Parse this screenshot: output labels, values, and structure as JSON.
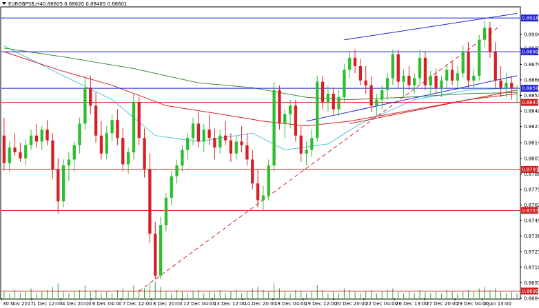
{
  "header": {
    "symbol": "EURGBPSB,H4",
    "ohlc": "0.88605 0.88620 0.88485 0.88601"
  },
  "chart_data": {
    "type": "candlestick",
    "ylim": [
      0.8684,
      0.89275
    ],
    "y_ticks": [
      "0.89045",
      "0.88930",
      "0.88795",
      "0.88665",
      "0.88535",
      "0.88405",
      "0.88275",
      "0.88140",
      "0.88010",
      "0.87880",
      "0.87750",
      "0.87620",
      "0.87490",
      "0.87360",
      "0.87230",
      "0.87100",
      "0.86970",
      "0.86840"
    ],
    "x_labels": [
      "30 Nov 2017",
      "1 Dec 12:00",
      "4 Dec 20:00",
      "6 Dec 04:00",
      "7 Dec 12:00",
      "8 Dec 20:00",
      "12 Dec 04:00",
      "13 Dec 12:00",
      "14 Dec 20:00",
      "18 Dec 04:00",
      "19 Dec 12:00",
      "20 Dec 20:00",
      "22 Dec 04:00",
      "26 Dec 13:00",
      "27 Dec 20:00",
      "29 Dec 04:00",
      "2 Jan 13:00"
    ],
    "horizontal_levels": [
      {
        "value": 0.89182,
        "label": "0.89182",
        "color": "#1e22d6"
      },
      {
        "value": 0.889,
        "label": "0.88900",
        "color": "#1e22d6"
      },
      {
        "value": 0.88595,
        "label": "0.88595",
        "color": "#1e22d6"
      },
      {
        "value": 0.88477,
        "label": "0.88477",
        "color": "#d2201e"
      },
      {
        "value": 0.87917,
        "label": "0.87917",
        "color": "#d2201e"
      },
      {
        "value": 0.87575,
        "label": "0.87575",
        "color": "#d2201e"
      },
      {
        "value": 0.86901,
        "label": "0.86901",
        "color": "#d2201e"
      }
    ],
    "candles": [
      [
        0.882,
        0.8835,
        0.8791,
        0.8797
      ],
      [
        0.8797,
        0.8815,
        0.879,
        0.881
      ],
      [
        0.881,
        0.8822,
        0.8803,
        0.8806
      ],
      [
        0.8806,
        0.8814,
        0.8798,
        0.8801
      ],
      [
        0.8801,
        0.8817,
        0.8795,
        0.8812
      ],
      [
        0.8812,
        0.8825,
        0.8808,
        0.882
      ],
      [
        0.882,
        0.883,
        0.881,
        0.8815
      ],
      [
        0.8815,
        0.8828,
        0.8808,
        0.8825
      ],
      [
        0.8825,
        0.8833,
        0.8812,
        0.8816
      ],
      [
        0.8816,
        0.8822,
        0.8784,
        0.8792
      ],
      [
        0.8792,
        0.8801,
        0.8755,
        0.8765
      ],
      [
        0.8765,
        0.88,
        0.876,
        0.8795
      ],
      [
        0.8795,
        0.8806,
        0.8782,
        0.88
      ],
      [
        0.88,
        0.8815,
        0.879,
        0.8812
      ],
      [
        0.8812,
        0.8835,
        0.8805,
        0.883
      ],
      [
        0.883,
        0.8868,
        0.8825,
        0.886
      ],
      [
        0.886,
        0.887,
        0.8838,
        0.8845
      ],
      [
        0.8845,
        0.8856,
        0.8814,
        0.882
      ],
      [
        0.882,
        0.8832,
        0.88,
        0.8805
      ],
      [
        0.8805,
        0.8828,
        0.88,
        0.8822
      ],
      [
        0.8822,
        0.8838,
        0.8815,
        0.8833
      ],
      [
        0.8833,
        0.8842,
        0.8812,
        0.8818
      ],
      [
        0.8818,
        0.8826,
        0.879,
        0.8796
      ],
      [
        0.8796,
        0.881,
        0.8788,
        0.8806
      ],
      [
        0.8806,
        0.8855,
        0.88,
        0.8848
      ],
      [
        0.8848,
        0.8852,
        0.8812,
        0.8818
      ],
      [
        0.8818,
        0.8826,
        0.8785,
        0.8792
      ],
      [
        0.8792,
        0.8805,
        0.873,
        0.8738
      ],
      [
        0.8738,
        0.8748,
        0.87,
        0.8703
      ],
      [
        0.8703,
        0.8752,
        0.87,
        0.8745
      ],
      [
        0.8745,
        0.8772,
        0.874,
        0.8768
      ],
      [
        0.8768,
        0.879,
        0.8762,
        0.8786
      ],
      [
        0.8786,
        0.88,
        0.878,
        0.8795
      ],
      [
        0.8795,
        0.8812,
        0.879,
        0.8808
      ],
      [
        0.8808,
        0.8822,
        0.88,
        0.8818
      ],
      [
        0.8818,
        0.8835,
        0.8812,
        0.883
      ],
      [
        0.883,
        0.884,
        0.881,
        0.8815
      ],
      [
        0.8815,
        0.883,
        0.8806,
        0.8825
      ],
      [
        0.8825,
        0.8838,
        0.8812,
        0.8818
      ],
      [
        0.8818,
        0.8826,
        0.88,
        0.881
      ],
      [
        0.881,
        0.8825,
        0.8805,
        0.882
      ],
      [
        0.882,
        0.8832,
        0.8812,
        0.8816
      ],
      [
        0.8816,
        0.8822,
        0.8798,
        0.8805
      ],
      [
        0.8805,
        0.882,
        0.88,
        0.8815
      ],
      [
        0.8815,
        0.8828,
        0.8806,
        0.8812
      ],
      [
        0.8812,
        0.8822,
        0.8795,
        0.88
      ],
      [
        0.88,
        0.8808,
        0.8775,
        0.878
      ],
      [
        0.878,
        0.8792,
        0.876,
        0.8766
      ],
      [
        0.8766,
        0.8778,
        0.8757,
        0.877
      ],
      [
        0.877,
        0.88,
        0.8766,
        0.8795
      ],
      [
        0.8795,
        0.8865,
        0.879,
        0.8858
      ],
      [
        0.8858,
        0.8862,
        0.8825,
        0.883
      ],
      [
        0.883,
        0.8842,
        0.8818,
        0.8838
      ],
      [
        0.8838,
        0.885,
        0.8826,
        0.8845
      ],
      [
        0.8845,
        0.885,
        0.8815,
        0.882
      ],
      [
        0.882,
        0.8828,
        0.8798,
        0.8805
      ],
      [
        0.8805,
        0.8815,
        0.8795,
        0.8808
      ],
      [
        0.8808,
        0.8825,
        0.8802,
        0.8818
      ],
      [
        0.8818,
        0.887,
        0.8815,
        0.8865
      ],
      [
        0.8865,
        0.887,
        0.8842,
        0.8848
      ],
      [
        0.8848,
        0.8862,
        0.884,
        0.8855
      ],
      [
        0.8855,
        0.886,
        0.8838,
        0.8842
      ],
      [
        0.8842,
        0.8858,
        0.8836,
        0.8852
      ],
      [
        0.8852,
        0.888,
        0.8848,
        0.8875
      ],
      [
        0.8875,
        0.889,
        0.8868,
        0.8885
      ],
      [
        0.8885,
        0.8892,
        0.8872,
        0.8878
      ],
      [
        0.8878,
        0.8884,
        0.8862,
        0.8866
      ],
      [
        0.8866,
        0.8878,
        0.8855,
        0.8862
      ],
      [
        0.8862,
        0.887,
        0.884,
        0.8845
      ],
      [
        0.8845,
        0.8855,
        0.8836,
        0.885
      ],
      [
        0.885,
        0.8862,
        0.8842,
        0.8858
      ],
      [
        0.8858,
        0.8872,
        0.885,
        0.8868
      ],
      [
        0.8868,
        0.8892,
        0.8862,
        0.8888
      ],
      [
        0.8888,
        0.8892,
        0.886,
        0.8865
      ],
      [
        0.8865,
        0.8875,
        0.8852,
        0.887
      ],
      [
        0.887,
        0.8878,
        0.8858,
        0.8862
      ],
      [
        0.8862,
        0.8872,
        0.8855,
        0.8868
      ],
      [
        0.8868,
        0.8892,
        0.8862,
        0.8885
      ],
      [
        0.8885,
        0.889,
        0.8858,
        0.8862
      ],
      [
        0.8862,
        0.8874,
        0.8855,
        0.887
      ],
      [
        0.887,
        0.8876,
        0.8856,
        0.886
      ],
      [
        0.886,
        0.887,
        0.8852,
        0.8866
      ],
      [
        0.8866,
        0.888,
        0.886,
        0.8875
      ],
      [
        0.8875,
        0.8882,
        0.8862,
        0.8866
      ],
      [
        0.8866,
        0.8878,
        0.886,
        0.8872
      ],
      [
        0.8872,
        0.8895,
        0.8868,
        0.889
      ],
      [
        0.889,
        0.8898,
        0.886,
        0.8866
      ],
      [
        0.8866,
        0.8876,
        0.8858,
        0.887
      ],
      [
        0.887,
        0.8904,
        0.8866,
        0.89
      ],
      [
        0.89,
        0.8916,
        0.8894,
        0.891
      ],
      [
        0.891,
        0.8915,
        0.8885,
        0.889
      ],
      [
        0.889,
        0.8898,
        0.886,
        0.8866
      ],
      [
        0.8866,
        0.8878,
        0.8852,
        0.886
      ],
      [
        0.886,
        0.8872,
        0.8852,
        0.8864
      ],
      [
        0.8864,
        0.887,
        0.885,
        0.886
      ],
      [
        0.886,
        0.8862,
        0.8848,
        0.886
      ]
    ],
    "indicators": [
      {
        "color": "#4cc3dc",
        "points": [
          [
            0,
            0.8895
          ],
          [
            10,
            0.8872
          ],
          [
            20,
            0.885
          ],
          [
            28,
            0.882
          ],
          [
            36,
            0.8815
          ],
          [
            46,
            0.8822
          ],
          [
            52,
            0.8808
          ],
          [
            60,
            0.8813
          ],
          [
            66,
            0.883
          ],
          [
            76,
            0.885
          ],
          [
            86,
            0.8858
          ],
          [
            95,
            0.886
          ]
        ]
      },
      {
        "color": "#d2201e",
        "points": [
          [
            0,
            0.889
          ],
          [
            10,
            0.8875
          ],
          [
            20,
            0.8862
          ],
          [
            30,
            0.8845
          ],
          [
            40,
            0.8838
          ],
          [
            48,
            0.8832
          ],
          [
            56,
            0.8828
          ],
          [
            64,
            0.8832
          ],
          [
            74,
            0.884
          ],
          [
            86,
            0.885
          ],
          [
            95,
            0.8855
          ]
        ]
      },
      {
        "color": "#3c8c3c",
        "points": [
          [
            0,
            0.8893
          ],
          [
            12,
            0.8885
          ],
          [
            24,
            0.8876
          ],
          [
            36,
            0.8864
          ],
          [
            46,
            0.886
          ],
          [
            56,
            0.8852
          ],
          [
            64,
            0.885
          ],
          [
            74,
            0.8852
          ],
          [
            86,
            0.8855
          ],
          [
            95,
            0.8856
          ]
        ]
      }
    ],
    "trendlines": [
      {
        "color": "#1e22d6",
        "style": "solid",
        "from": [
          63,
          0.89
        ],
        "to": [
          95,
          0.8922
        ]
      },
      {
        "color": "#1e22d6",
        "style": "solid",
        "from": [
          56,
          0.8832
        ],
        "to": [
          95,
          0.887
        ]
      },
      {
        "color": "#d2201e",
        "style": "dashed",
        "from": [
          25,
          0.869
        ],
        "to": [
          92,
          0.8912
        ]
      },
      {
        "color": "#d2201e",
        "style": "solid",
        "from": [
          64,
          0.883
        ],
        "to": [
          95,
          0.8858
        ]
      }
    ],
    "volumes": [
      4,
      3,
      5,
      3,
      4,
      6,
      3,
      4,
      5,
      7,
      9,
      4,
      3,
      4,
      5,
      8,
      4,
      5,
      3,
      4,
      3,
      5,
      6,
      4,
      8,
      5,
      6,
      9,
      10,
      7,
      4,
      3,
      5,
      4,
      3,
      4,
      5,
      3,
      4,
      3,
      5,
      3,
      4,
      5,
      3,
      4,
      6,
      7,
      5,
      4,
      9,
      6,
      4,
      3,
      5,
      4,
      3,
      4,
      8,
      5,
      3,
      4,
      3,
      6,
      5,
      4,
      3,
      4,
      5,
      3,
      4,
      5,
      6,
      4,
      3,
      4,
      3,
      5,
      4,
      3,
      4,
      3,
      5,
      4,
      3,
      4,
      5,
      4,
      6,
      7,
      5,
      6,
      4,
      3,
      4,
      3
    ]
  }
}
